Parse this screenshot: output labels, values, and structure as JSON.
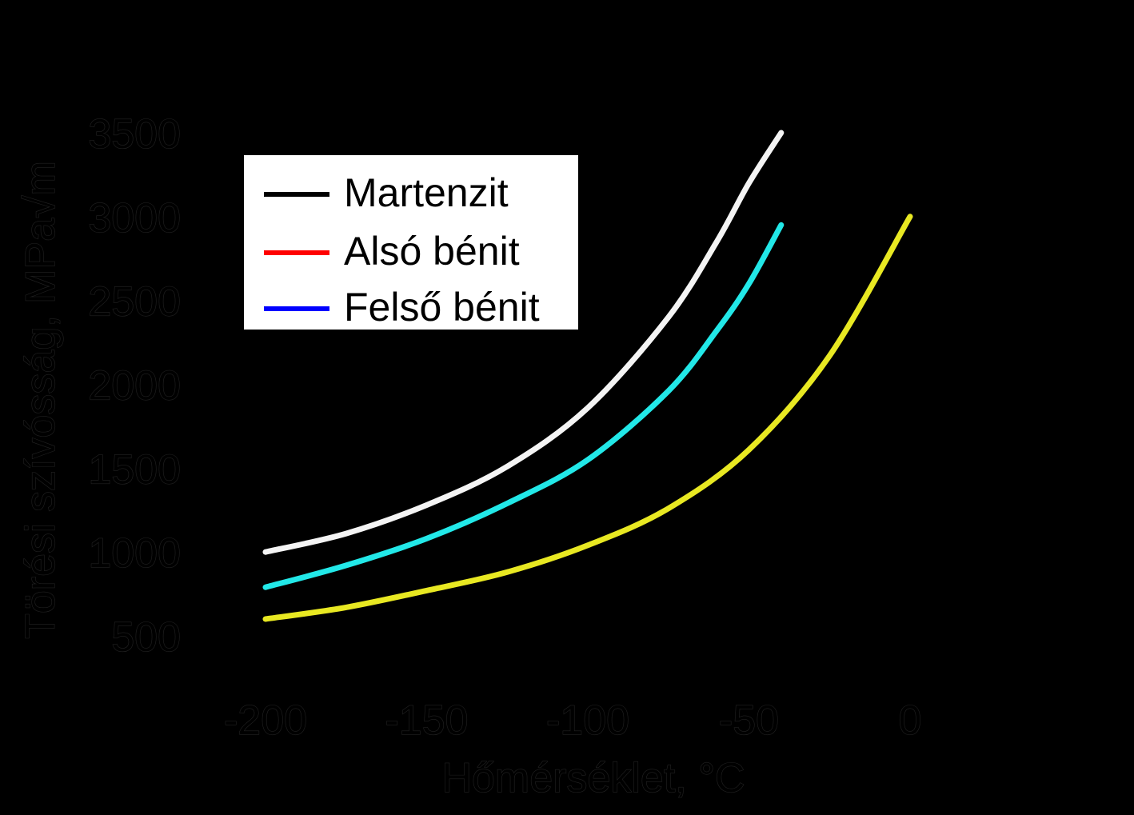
{
  "chart_data": {
    "type": "line",
    "xlabel": "Hőmérséklet, °C",
    "ylabel": "Törési szívósság, MPa√m",
    "xlim": [
      -200,
      0
    ],
    "ylim": [
      500,
      3500
    ],
    "x_ticks": [
      "-200",
      "-150",
      "-100",
      "-50",
      "0"
    ],
    "y_ticks": [
      "3500",
      "3000",
      "2500",
      "2000",
      "1500",
      "1000",
      "500"
    ],
    "legend": {
      "position": "top-left",
      "entries": [
        {
          "label": "Martenzit",
          "color": "#000000"
        },
        {
          "label": "Alsó bénit",
          "color": "#ff0000"
        },
        {
          "label": "Felső bénit",
          "color": "#0000ff"
        }
      ]
    },
    "series": [
      {
        "color": "#f4f4f4",
        "x": [
          -200,
          -175,
          -150,
          -125,
          -100,
          -75,
          -60,
          -50,
          -40
        ],
        "y": [
          1000,
          1110,
          1280,
          1510,
          1860,
          2400,
          2850,
          3200,
          3500
        ]
      },
      {
        "color": "#22e8e8",
        "x": [
          -200,
          -175,
          -150,
          -125,
          -100,
          -75,
          -60,
          -50,
          -40
        ],
        "y": [
          790,
          920,
          1080,
          1290,
          1550,
          1960,
          2320,
          2600,
          2950
        ]
      },
      {
        "color": "#e8e822",
        "x": [
          -200,
          -175,
          -150,
          -125,
          -100,
          -75,
          -50,
          -25,
          0
        ],
        "y": [
          600,
          670,
          770,
          880,
          1040,
          1260,
          1610,
          2170,
          3000
        ]
      }
    ]
  }
}
